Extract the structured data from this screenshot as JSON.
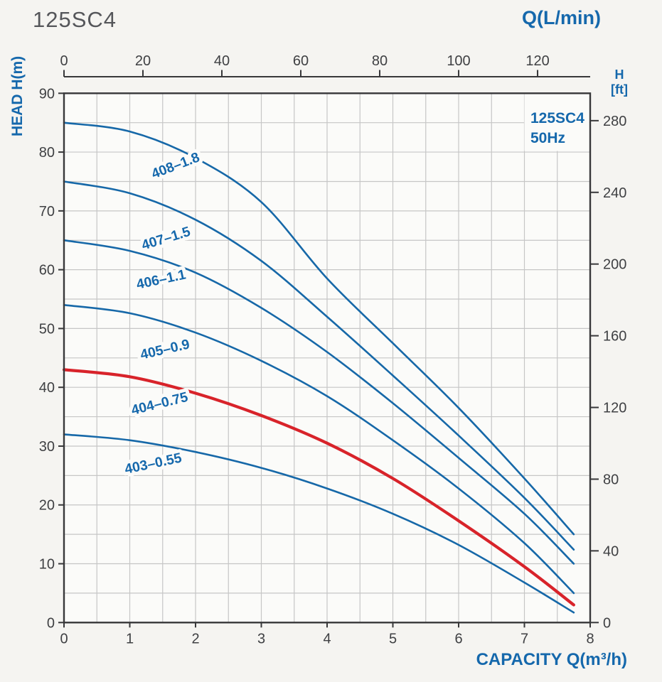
{
  "colors": {
    "page_bg": "#f5f4f1",
    "plot_bg": "#fbfbf9",
    "grid": "#c6c6c6",
    "frame": "#38383a",
    "axis_text": "#3f4043",
    "text_blue": "#1568ac",
    "curve_blue": "#1668a8",
    "curve_red": "#d8232a",
    "title_gray": "#55565a"
  },
  "chart_data": {
    "type": "line",
    "title": "125SC4",
    "legend": {
      "lines": [
        "125SC4",
        "50Hz"
      ],
      "position": "top-right-inside"
    },
    "grid": "on",
    "top_axis": {
      "label": "Q(L/min)",
      "ticks": [
        0,
        20,
        40,
        60,
        80,
        100,
        120
      ],
      "max": 133.33
    },
    "left_axis": {
      "label": "HEAD H(m)",
      "ticks": [
        0,
        10,
        20,
        30,
        40,
        50,
        60,
        70,
        80,
        90
      ],
      "min": 0,
      "max": 90
    },
    "right_axis": {
      "label_line1": "H",
      "label_line2": "[ft]",
      "ticks": [
        0,
        40,
        80,
        120,
        160,
        200,
        240,
        280
      ]
    },
    "bottom_axis": {
      "label": "CAPACITY Q(m³/h)",
      "ticks": [
        0,
        1,
        2,
        3,
        4,
        5,
        6,
        7,
        8
      ],
      "min": 0,
      "max": 8
    },
    "q": [
      0,
      1,
      2,
      3,
      4,
      5,
      6,
      7,
      7.75
    ],
    "series": [
      {
        "name": "408–1.8",
        "color": "#1668a8",
        "width": 2.6,
        "h": [
          85,
          83.5,
          79,
          71.5,
          58.5,
          47.5,
          36.5,
          24.5,
          15
        ],
        "label": {
          "q": 1.72,
          "h": 77.0,
          "angle": -21
        }
      },
      {
        "name": "407–1.5",
        "color": "#1668a8",
        "width": 2.6,
        "h": [
          75,
          73,
          68.5,
          61.5,
          52,
          42,
          31.8,
          21.2,
          12.4
        ],
        "label": {
          "q": 1.57,
          "h": 64.6,
          "angle": -17
        }
      },
      {
        "name": "406–1.1",
        "color": "#1668a8",
        "width": 2.6,
        "h": [
          65,
          63.2,
          59.5,
          53.5,
          46,
          37.3,
          28,
          18.5,
          10
        ],
        "label": {
          "q": 1.49,
          "h": 57.6,
          "angle": -12
        }
      },
      {
        "name": "405–0.9",
        "color": "#1668a8",
        "width": 2.6,
        "h": [
          54,
          52.6,
          49.3,
          44.5,
          38.5,
          31,
          22.8,
          13.5,
          5
        ],
        "label": {
          "q": 1.55,
          "h": 45.7,
          "angle": -13
        }
      },
      {
        "name": "404–0.75",
        "color": "#d8232a",
        "width": 4.2,
        "h": [
          43,
          41.8,
          39,
          35.2,
          30.5,
          24.5,
          17.3,
          9.5,
          3
        ],
        "label": {
          "q": 1.47,
          "h": 36.5,
          "angle": -14
        }
      },
      {
        "name": "403–0.55",
        "color": "#1668a8",
        "width": 2.6,
        "h": [
          32,
          31,
          29,
          26.3,
          22.8,
          18.5,
          13.2,
          6.8,
          1.7
        ],
        "label": {
          "q": 1.37,
          "h": 26.3,
          "angle": -12
        }
      }
    ]
  }
}
